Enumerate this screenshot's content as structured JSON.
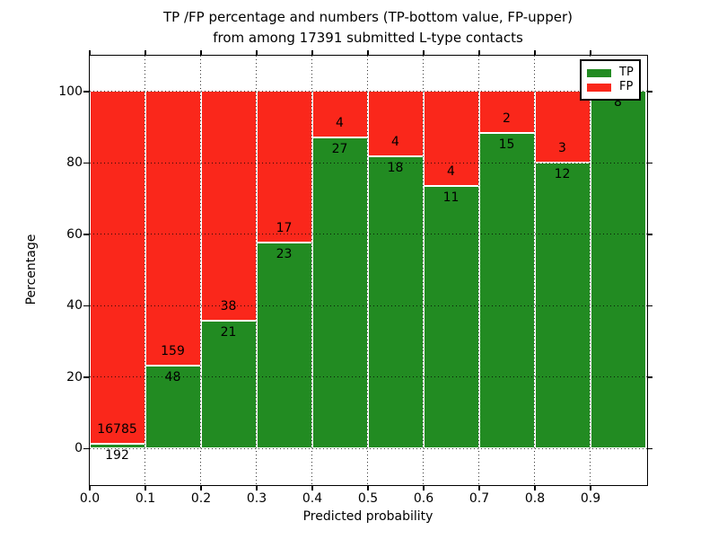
{
  "title": {
    "line1": "TP /FP percentage and numbers (TP-bottom value, FP-upper)",
    "line2": "from among 17391 submitted L-type contacts"
  },
  "chart_data": {
    "type": "bar",
    "stacked": true,
    "normalized_to_percent": true,
    "title_line1": "TP /FP percentage and numbers (TP-bottom value, FP-upper)",
    "title_line2": "from among 17391 submitted L-type contacts",
    "total_contacts": 17391,
    "categories": [
      "0.0-0.1",
      "0.1-0.2",
      "0.2-0.3",
      "0.3-0.4",
      "0.4-0.5",
      "0.5-0.6",
      "0.6-0.7",
      "0.7-0.8",
      "0.8-0.9",
      "0.9-1.0"
    ],
    "series": [
      {
        "name": "TP",
        "color": "#228b22",
        "counts": [
          192,
          48,
          21,
          23,
          27,
          18,
          11,
          15,
          12,
          8
        ]
      },
      {
        "name": "FP",
        "color": "#fa271b",
        "counts": [
          16785,
          159,
          38,
          17,
          4,
          4,
          4,
          2,
          3,
          0
        ]
      }
    ],
    "tp_percent": [
      1.1,
      23.2,
      35.6,
      57.5,
      87.1,
      81.8,
      73.3,
      88.2,
      80.0,
      100.0
    ],
    "xlabel": "Predicted probability",
    "ylabel": "Percentage",
    "x_ticks": [
      "0.0",
      "0.1",
      "0.2",
      "0.3",
      "0.4",
      "0.5",
      "0.6",
      "0.7",
      "0.8",
      "0.9"
    ],
    "y_ticks": [
      "0",
      "20",
      "40",
      "60",
      "80",
      "100"
    ],
    "xlim": [
      0.0,
      1.0
    ],
    "ylim": [
      -10,
      110
    ],
    "grid": "dotted",
    "legend": {
      "position": "upper right",
      "entries": [
        {
          "label": "TP",
          "color": "#228b22"
        },
        {
          "label": "FP",
          "color": "#fa271b"
        }
      ]
    }
  }
}
